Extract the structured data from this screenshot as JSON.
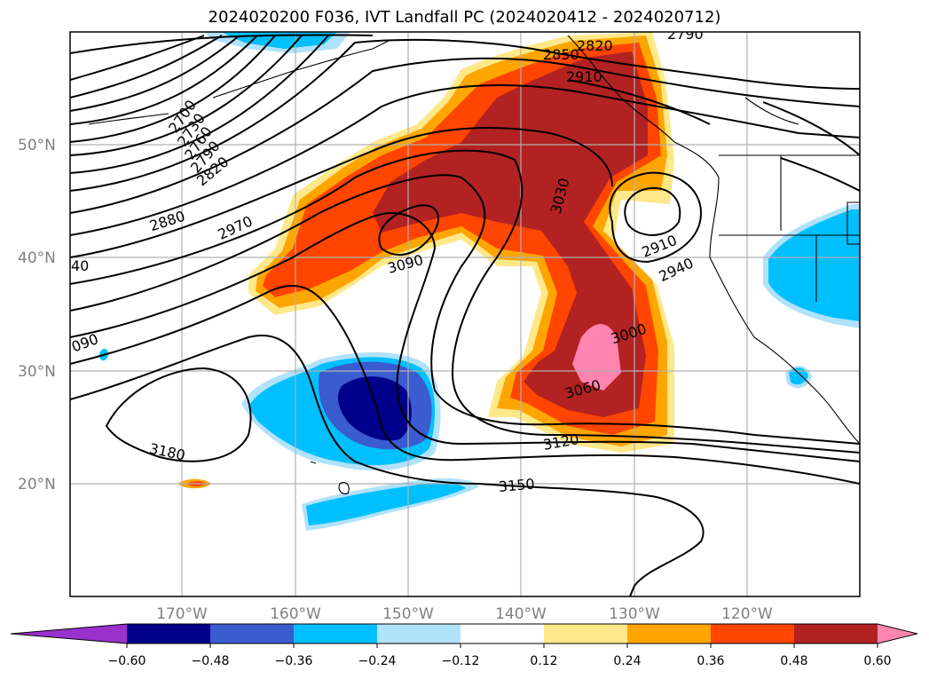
{
  "title": "2024020200 F036, IVT Landfall PC (2024020412 - 2024020712)",
  "lat_labels": [
    "50°N",
    "40°N",
    "30°N",
    "20°N"
  ],
  "lon_labels": [
    "170°W",
    "160°W",
    "150°W",
    "140°W",
    "130°W",
    "120°W"
  ],
  "contour_labels": [
    "2790",
    "2820",
    "2850",
    "2910",
    "2700",
    "2730",
    "2760",
    "2790",
    "2820",
    "2880",
    "2970",
    "3030",
    "3090",
    "2910",
    "2940",
    "40",
    "3000",
    "090",
    "3060",
    "3120",
    "3180",
    "3150"
  ],
  "colorbar": {
    "ticks": [
      "−0.60",
      "−0.48",
      "−0.36",
      "−0.24",
      "−0.12",
      "0.12",
      "0.24",
      "0.36",
      "0.48",
      "0.60"
    ],
    "colors": [
      "#9932cc",
      "#00008b",
      "#3b5bd0",
      "#00bfff",
      "#b0e2fa",
      "#ffffff",
      "#ffe88a",
      "#ffa500",
      "#ff4500",
      "#b22222",
      "#ff85b0"
    ]
  }
}
